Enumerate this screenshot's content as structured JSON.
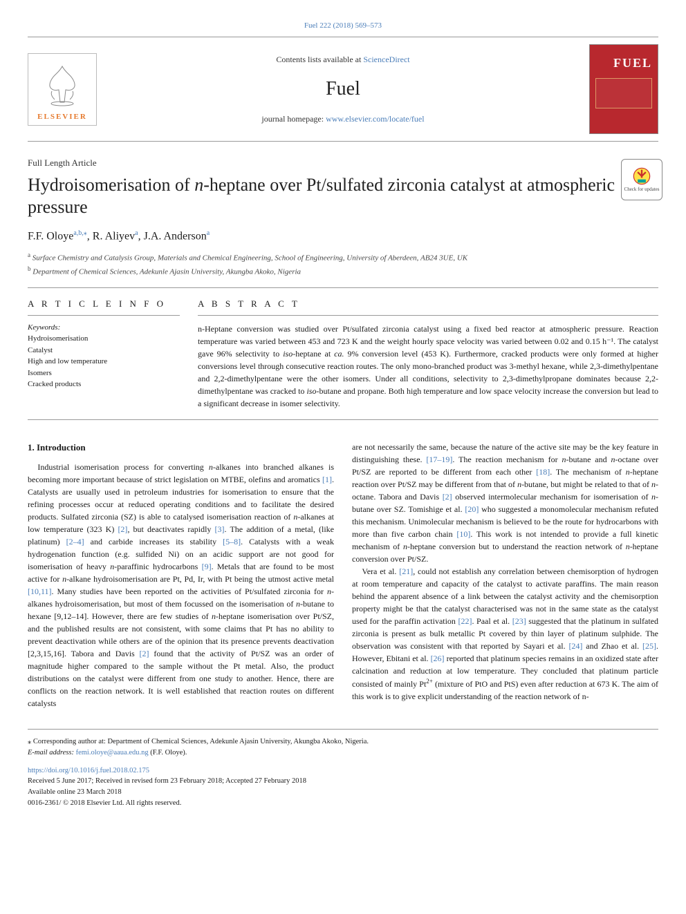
{
  "top_citation": "Fuel 222 (2018) 569–573",
  "header": {
    "contents_prefix": "Contents lists available at ",
    "contents_link": "ScienceDirect",
    "journal": "Fuel",
    "homepage_prefix": "journal homepage: ",
    "homepage_url": "www.elsevier.com/locate/fuel",
    "publisher_name": "ELSEVIER",
    "cover_title": "FUEL"
  },
  "article_type": "Full Length Article",
  "title_pre": "Hydroisomerisation of ",
  "title_ital": "n",
  "title_post": "-heptane over Pt/sulfated zirconia catalyst at atmospheric pressure",
  "authors_html": "F.F. Oloye",
  "author1_sup": "a,b,",
  "author1_star": "⁎",
  "author2": ", R. Aliyev",
  "author2_sup": "a",
  "author3": ", J.A. Anderson",
  "author3_sup": "a",
  "affiliations": {
    "a": "Surface Chemistry and Catalysis Group, Materials and Chemical Engineering, School of Engineering, University of Aberdeen, AB24 3UE, UK",
    "b": "Department of Chemical Sciences, Adekunle Ajasin University, Akungba Akoko, Nigeria"
  },
  "article_info_label": "A R T I C L E  I N F O",
  "abstract_label": "A B S T R A C T",
  "keywords_label": "Keywords:",
  "keywords": [
    "Hydroisomerisation",
    "Catalyst",
    "High and low temperature",
    "Isomers",
    "Cracked products"
  ],
  "abstract": "n-Heptane conversion was studied over Pt/sulfated zirconia catalyst using a fixed bed reactor at atmospheric pressure. Reaction temperature was varied between 453 and 723 K and the weight hourly space velocity was varied between 0.02 and 0.15 h⁻¹. The catalyst gave 96% selectivity to iso-heptane at ca. 9% conversion level (453 K). Furthermore, cracked products were only formed at higher conversions level through consecutive reaction routes. The only mono-branched product was 3-methyl hexane, while 2,3-dimethylpentane and 2,2-dimethylpentane were the other isomers. Under all conditions, selectivity to 2,3-dimethylpropane dominates because 2,2-dimethylpentane was cracked to iso-butane and propane. Both high temperature and low space velocity increase the conversion but lead to a significant decrease in isomer selectivity.",
  "intro_heading": "1. Introduction",
  "intro_para1": "Industrial isomerisation process for converting n-alkanes into branched alkanes is becoming more important because of strict legislation on MTBE, olefins and aromatics [1]. Catalysts are usually used in petroleum industries for isomerisation to ensure that the refining processes occur at reduced operating conditions and to facilitate the desired products. Sulfated zirconia (SZ) is able to catalysed isomerisation reaction of n-alkanes at low temperature (323 K) [2], but deactivates rapidly [3]. The addition of a metal, (like platinum) [2–4] and carbide increases its stability [5–8]. Catalysts with a weak hydrogenation function (e.g. sulfided Ni) on an acidic support are not good for isomerisation of heavy n-paraffinic hydrocarbons [9]. Metals that are found to be most active for n-alkane hydroisomerisation are Pt, Pd, Ir, with Pt being the utmost active metal [10,11]. Many studies have been reported on the activities of Pt/sulfated zirconia for n-alkanes hydroisomerisation, but most of them focussed on the isomerisation of n-butane to hexane [9,12–14]. However, there are few studies of n-heptane isomerisation over Pt/SZ, and the published results are not consistent, with some claims that Pt has no ability to prevent deactivation while others are of the opinion that its presence prevents deactivation [2,3,15,16]. Tabora and Davis [2] found that the activity of Pt/SZ was an order of magnitude higher compared to the sample without the Pt metal. Also, the product distributions on the catalyst were different from one study to another. Hence, there are conflicts on the reaction network. It is well established that reaction routes on different catalysts",
  "intro_para2": "are not necessarily the same, because the nature of the active site may be the key feature in distinguishing these. [17–19]. The reaction mechanism for n-butane and n-octane over Pt/SZ are reported to be different from each other [18]. The mechanism of n-heptane reaction over Pt/SZ may be different from that of n-butane, but might be related to that of n-octane. Tabora and Davis [2] observed intermolecular mechanism for isomerisation of n-butane over SZ. Tomishige et al. [20] who suggested a monomolecular mechanism refuted this mechanism. Unimolecular mechanism is believed to be the route for hydrocarbons with more than five carbon chain [10]. This work is not intended to provide a full kinetic mechanism of n-heptane conversion but to understand the reaction network of n-heptane conversion over Pt/SZ.",
  "intro_para3": "Vera et al. [21], could not establish any correlation between chemisorption of hydrogen at room temperature and capacity of the catalyst to activate paraffins. The main reason behind the apparent absence of a link between the catalyst activity and the chemisorption property might be that the catalyst characterised was not in the same state as the catalyst used for the paraffin activation [22]. Paal et al. [23] suggested that the platinum in sulfated zirconia is present as bulk metallic Pt covered by thin layer of platinum sulphide. The observation was consistent with that reported by Sayari et al. [24] and Zhao et al. [25]. However, Ebitani et al. [26] reported that platinum species remains in an oxidized state after calcination and reduction at low temperature. They concluded that platinum particle consisted of mainly Pt²⁺ (mixture of PtO and PtS) even after reduction at 673 K. The aim of this work is to give explicit understanding of the reaction network of n-",
  "footer": {
    "corr": "⁎ Corresponding author at: Department of Chemical Sciences, Adekunle Ajasin University, Akungba Akoko, Nigeria.",
    "email_label": "E-mail address: ",
    "email": "femi.oloye@aaua.edu.ng",
    "email_who": " (F.F. Oloye).",
    "doi": "https://doi.org/10.1016/j.fuel.2018.02.175",
    "received": "Received 5 June 2017; Received in revised form 23 February 2018; Accepted 27 February 2018",
    "online": "Available online 23 March 2018",
    "issn": "0016-2361/ © 2018 Elsevier Ltd. All rights reserved."
  },
  "check_updates_label": "Check for updates",
  "colors": {
    "link": "#4a7db8",
    "elsevier_orange": "#e67a2e",
    "fuel_red": "#b8282e",
    "rule": "#999999",
    "text": "#1a1a1a"
  }
}
